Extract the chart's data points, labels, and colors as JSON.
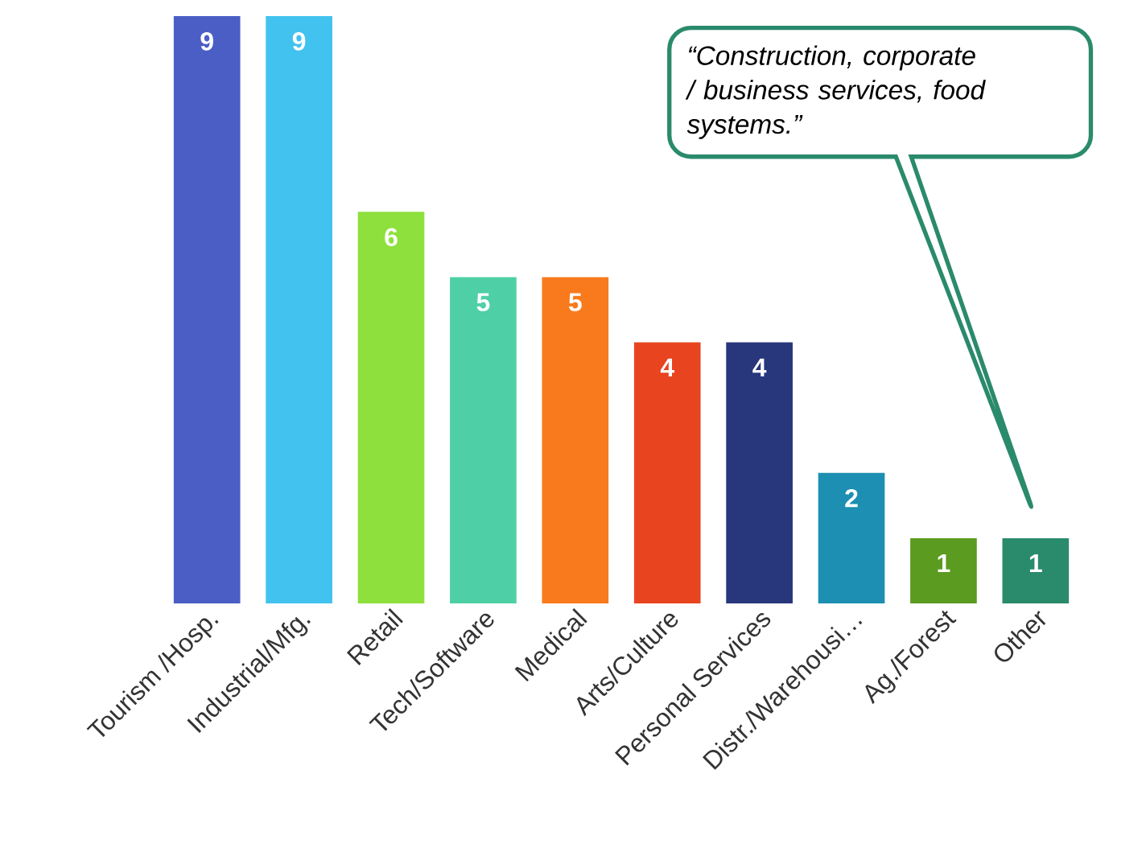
{
  "chart_data": {
    "type": "bar",
    "categories": [
      "Tourism /Hosp.",
      "Industrial/Mfg.",
      "Retail",
      "Tech/Software",
      "Medical",
      "Arts/Culture",
      "Personal Services",
      "Distr./Warehousi…",
      "Ag./Forest",
      "Other"
    ],
    "values": [
      9,
      9,
      6,
      5,
      5,
      4,
      4,
      2,
      1,
      1
    ],
    "colors": [
      "#4a5ec6",
      "#42c2ee",
      "#8ee03c",
      "#4fcfa6",
      "#f87a1c",
      "#e8441f",
      "#28367c",
      "#1d8fb2",
      "#5b9b1f",
      "#2a8a6c"
    ],
    "data_labels": true,
    "annotations": [
      "“Construction, corporate / business services, food systems.”"
    ]
  }
}
